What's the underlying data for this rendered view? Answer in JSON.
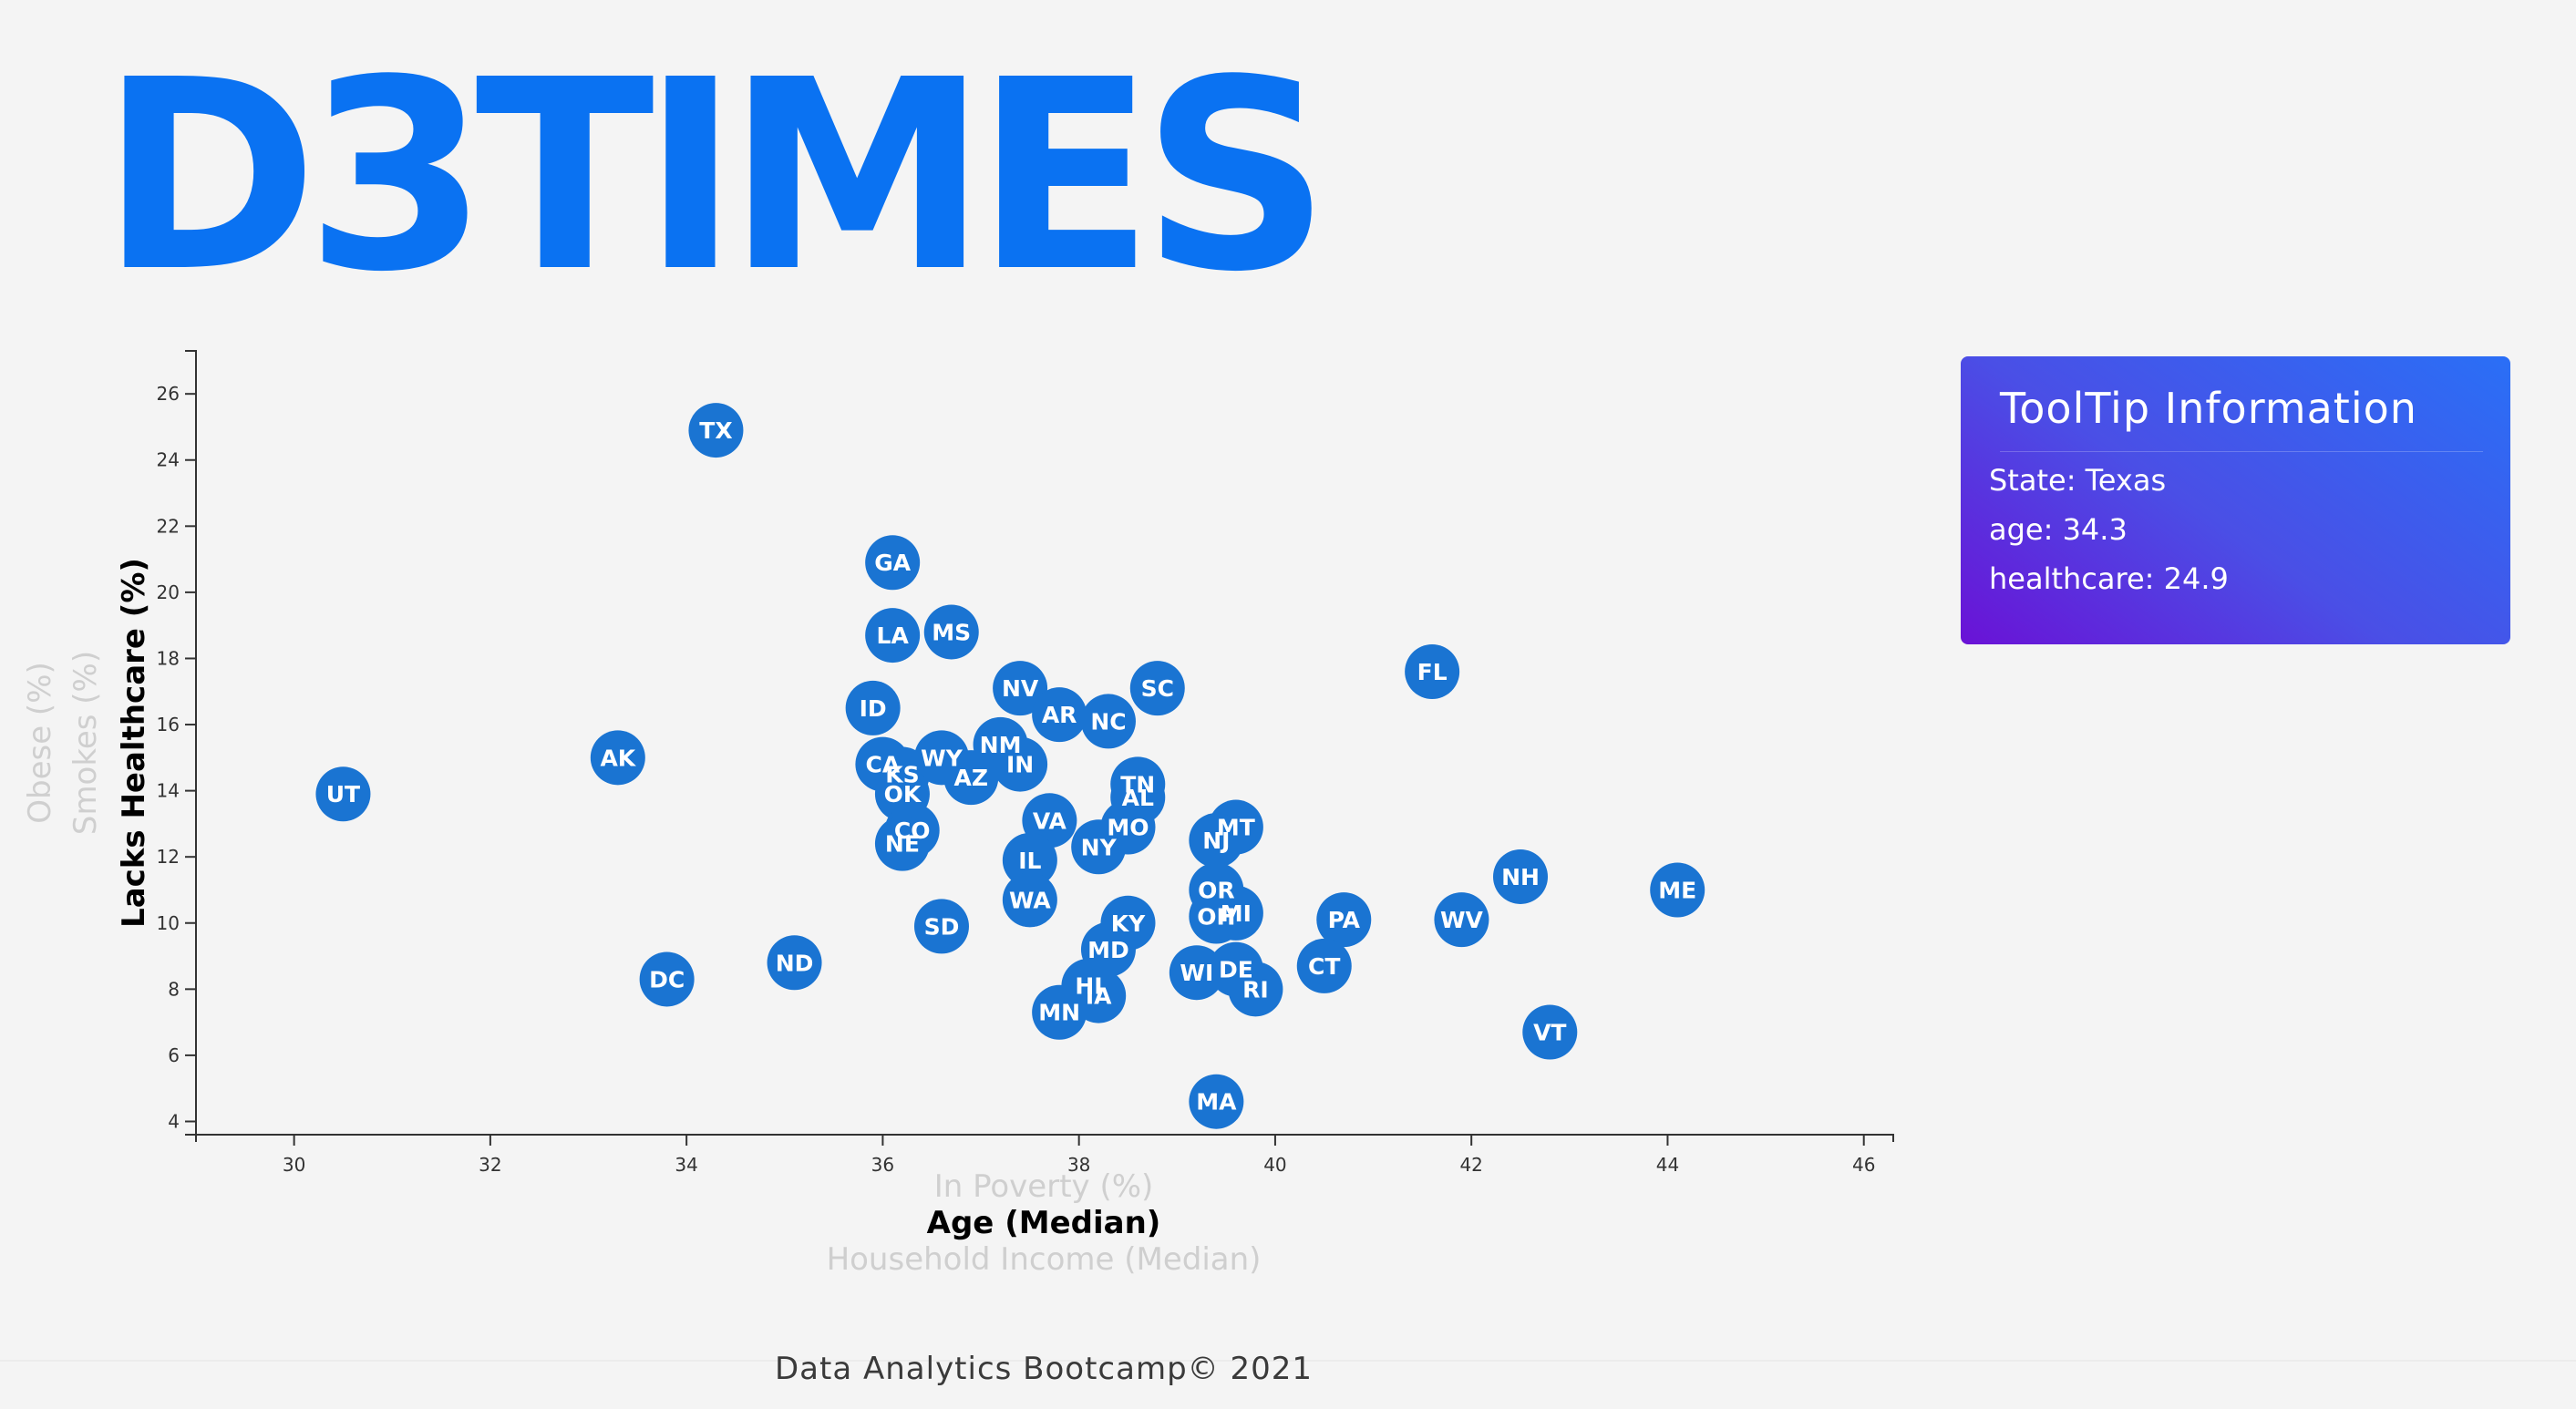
{
  "brand": {
    "title": "D3TIMES",
    "color": "#0a72f2"
  },
  "tooltip": {
    "title": "ToolTip Information",
    "state_line": "State: Texas",
    "age_line": "age: 34.3",
    "healthcare_line": "healthcare: 24.9"
  },
  "footer": {
    "text": "Data Analytics Bootcamp© 2021"
  },
  "colors": {
    "marker": "#1a74d2",
    "marker_text": "#ffffff",
    "active_label": "#000000",
    "inactive_label": "#cfcfcf",
    "axis": "#333333"
  },
  "chart_data": {
    "type": "scatter",
    "xlabel": "Age (Median)",
    "ylabel": "Lacks Healthcare (%)",
    "x_axis_options": [
      {
        "label": "In Poverty (%)",
        "active": false
      },
      {
        "label": "Age (Median)",
        "active": true
      },
      {
        "label": "Household Income (Median)",
        "active": false
      }
    ],
    "y_axis_options": [
      {
        "label": "Lacks Healthcare (%)",
        "active": true
      },
      {
        "label": "Smokes (%)",
        "active": false
      },
      {
        "label": "Obese (%)",
        "active": false
      }
    ],
    "xlim": [
      29,
      46.3
    ],
    "ylim": [
      3.6,
      27.3
    ],
    "x_ticks": [
      30,
      32,
      34,
      36,
      38,
      40,
      42,
      44,
      46
    ],
    "y_ticks": [
      4,
      6,
      8,
      10,
      12,
      14,
      16,
      18,
      20,
      22,
      24,
      26
    ],
    "grid": false,
    "points": [
      {
        "abbr": "TX",
        "x": 34.3,
        "y": 24.9
      },
      {
        "abbr": "GA",
        "x": 36.1,
        "y": 20.9
      },
      {
        "abbr": "LA",
        "x": 36.1,
        "y": 18.7
      },
      {
        "abbr": "MS",
        "x": 36.7,
        "y": 18.8
      },
      {
        "abbr": "FL",
        "x": 41.6,
        "y": 17.6
      },
      {
        "abbr": "NV",
        "x": 37.4,
        "y": 17.1
      },
      {
        "abbr": "SC",
        "x": 38.8,
        "y": 17.1
      },
      {
        "abbr": "ID",
        "x": 35.9,
        "y": 16.5
      },
      {
        "abbr": "AR",
        "x": 37.8,
        "y": 16.3
      },
      {
        "abbr": "NC",
        "x": 38.3,
        "y": 16.1
      },
      {
        "abbr": "NM",
        "x": 37.2,
        "y": 15.4
      },
      {
        "abbr": "AK",
        "x": 33.3,
        "y": 15.0
      },
      {
        "abbr": "WY",
        "x": 36.6,
        "y": 15.0
      },
      {
        "abbr": "CA",
        "x": 36.0,
        "y": 14.8
      },
      {
        "abbr": "IN",
        "x": 37.4,
        "y": 14.8
      },
      {
        "abbr": "KS",
        "x": 36.2,
        "y": 14.5
      },
      {
        "abbr": "AZ",
        "x": 36.9,
        "y": 14.4
      },
      {
        "abbr": "TN",
        "x": 38.6,
        "y": 14.2
      },
      {
        "abbr": "UT",
        "x": 30.5,
        "y": 13.9
      },
      {
        "abbr": "OK",
        "x": 36.2,
        "y": 13.9
      },
      {
        "abbr": "AL",
        "x": 38.6,
        "y": 13.8
      },
      {
        "abbr": "VA",
        "x": 37.7,
        "y": 13.1
      },
      {
        "abbr": "MO",
        "x": 38.5,
        "y": 12.9
      },
      {
        "abbr": "MT",
        "x": 39.6,
        "y": 12.9
      },
      {
        "abbr": "CO",
        "x": 36.3,
        "y": 12.8
      },
      {
        "abbr": "NJ",
        "x": 39.4,
        "y": 12.5
      },
      {
        "abbr": "NE",
        "x": 36.2,
        "y": 12.4
      },
      {
        "abbr": "NY",
        "x": 38.2,
        "y": 12.3
      },
      {
        "abbr": "IL",
        "x": 37.5,
        "y": 11.9
      },
      {
        "abbr": "NH",
        "x": 42.5,
        "y": 11.4
      },
      {
        "abbr": "ME",
        "x": 44.1,
        "y": 11.0
      },
      {
        "abbr": "OR",
        "x": 39.4,
        "y": 11.0
      },
      {
        "abbr": "WA",
        "x": 37.5,
        "y": 10.7
      },
      {
        "abbr": "MI",
        "x": 39.6,
        "y": 10.3
      },
      {
        "abbr": "OH",
        "x": 39.4,
        "y": 10.2
      },
      {
        "abbr": "PA",
        "x": 40.7,
        "y": 10.1
      },
      {
        "abbr": "WV",
        "x": 41.9,
        "y": 10.1
      },
      {
        "abbr": "KY",
        "x": 38.5,
        "y": 10.0
      },
      {
        "abbr": "SD",
        "x": 36.6,
        "y": 9.9
      },
      {
        "abbr": "MD",
        "x": 38.3,
        "y": 9.2
      },
      {
        "abbr": "ND",
        "x": 35.1,
        "y": 8.8
      },
      {
        "abbr": "DE",
        "x": 39.6,
        "y": 8.6
      },
      {
        "abbr": "CT",
        "x": 40.5,
        "y": 8.7
      },
      {
        "abbr": "WI",
        "x": 39.2,
        "y": 8.5
      },
      {
        "abbr": "DC",
        "x": 33.8,
        "y": 8.3
      },
      {
        "abbr": "HI",
        "x": 38.1,
        "y": 8.1
      },
      {
        "abbr": "RI",
        "x": 39.8,
        "y": 8.0
      },
      {
        "abbr": "IA",
        "x": 38.2,
        "y": 7.8
      },
      {
        "abbr": "MN",
        "x": 37.8,
        "y": 7.3
      },
      {
        "abbr": "VT",
        "x": 42.8,
        "y": 6.7
      },
      {
        "abbr": "MA",
        "x": 39.4,
        "y": 4.6
      }
    ]
  }
}
